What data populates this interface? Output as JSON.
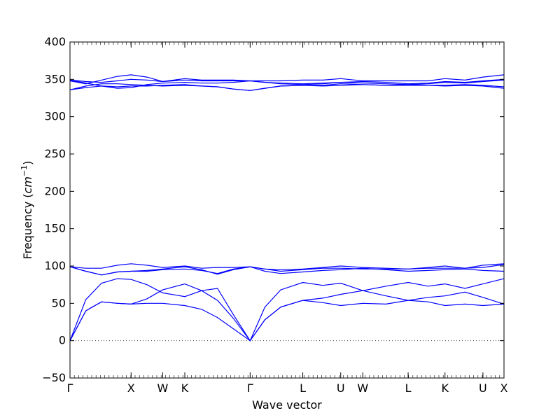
{
  "chart_data": {
    "type": "line",
    "title": "",
    "xlabel": "Wave vector",
    "ylabel": "Frequency",
    "ylabel_unit": "cm",
    "ylabel_unit_power": "−1",
    "ylim": [
      -50,
      400
    ],
    "yticks": [
      -50,
      0,
      50,
      100,
      150,
      200,
      250,
      300,
      350,
      400
    ],
    "ytick_labels": [
      "−50",
      "0",
      "50",
      "100",
      "150",
      "200",
      "250",
      "300",
      "350",
      "400"
    ],
    "xlim": [
      0,
      4.12
    ],
    "xticks": [
      {
        "label": "Γ",
        "x": 0.0
      },
      {
        "label": "X",
        "x": 0.58
      },
      {
        "label": "W",
        "x": 0.88
      },
      {
        "label": "K",
        "x": 1.09
      },
      {
        "label": "Γ",
        "x": 1.71
      },
      {
        "label": "L",
        "x": 2.21
      },
      {
        "label": "U",
        "x": 2.57
      },
      {
        "label": "W",
        "x": 2.78
      },
      {
        "label": "L",
        "x": 3.21
      },
      {
        "label": "K",
        "x": 3.56
      },
      {
        "label": "U",
        "x": 3.92
      },
      {
        "label": "X",
        "x": 4.12
      }
    ],
    "zero_line": {
      "y": 0,
      "style": "dotted"
    },
    "line_color": "#0000ff",
    "series": [
      {
        "x": [
          0.0,
          0.15,
          0.3,
          0.45,
          0.58,
          0.73,
          0.88,
          1.09,
          1.25,
          1.4,
          1.55,
          1.71,
          1.85,
          2.0,
          2.21,
          2.4,
          2.57,
          2.78,
          3.0,
          3.21,
          3.4,
          3.56,
          3.75,
          3.92,
          4.12
        ],
        "y": [
          0,
          40,
          52,
          50,
          49,
          50,
          50,
          47,
          42,
          31,
          16,
          0,
          28,
          45,
          54,
          51,
          47,
          50,
          49,
          54,
          52,
          47,
          49,
          47,
          49
        ]
      },
      {
        "x": [
          0.0,
          0.15,
          0.3,
          0.45,
          0.58,
          0.73,
          0.88,
          1.09,
          1.25,
          1.4,
          1.55,
          1.71,
          1.85,
          2.0,
          2.21,
          2.4,
          2.57,
          2.78,
          3.0,
          3.21,
          3.4,
          3.56,
          3.75,
          3.92,
          4.12
        ],
        "y": [
          0,
          40,
          52,
          50,
          49,
          56,
          68,
          76,
          67,
          54,
          30,
          0,
          28,
          45,
          54,
          57,
          62,
          67,
          60,
          54,
          58,
          60,
          65,
          58,
          49
        ]
      },
      {
        "x": [
          0.0,
          0.15,
          0.3,
          0.45,
          0.58,
          0.73,
          0.88,
          1.09,
          1.25,
          1.4,
          1.55,
          1.71,
          1.85,
          2.0,
          2.21,
          2.4,
          2.57,
          2.78,
          3.0,
          3.21,
          3.4,
          3.56,
          3.75,
          3.92,
          4.12
        ],
        "y": [
          0,
          55,
          77,
          83,
          82,
          75,
          64,
          59,
          67,
          70,
          35,
          0,
          45,
          68,
          78,
          74,
          77,
          67,
          73,
          78,
          73,
          76,
          70,
          76,
          83
        ]
      },
      {
        "x": [
          0.0,
          0.15,
          0.3,
          0.45,
          0.58,
          0.73,
          0.88,
          1.09,
          1.25,
          1.4,
          1.55,
          1.71,
          1.85,
          2.0,
          2.21,
          2.4,
          2.57,
          2.78,
          3.0,
          3.21,
          3.4,
          3.56,
          3.75,
          3.92,
          4.12
        ],
        "y": [
          99,
          93,
          88,
          92,
          93,
          93,
          95,
          96,
          94,
          90,
          96,
          99,
          93,
          90,
          92,
          94,
          95,
          97,
          95,
          93,
          94,
          95,
          96,
          94,
          93
        ]
      },
      {
        "x": [
          0.0,
          0.15,
          0.3,
          0.45,
          0.58,
          0.73,
          0.88,
          1.09,
          1.25,
          1.4,
          1.55,
          1.71,
          1.85,
          2.0,
          2.21,
          2.4,
          2.57,
          2.78,
          3.0,
          3.21,
          3.4,
          3.56,
          3.75,
          3.92,
          4.12
        ],
        "y": [
          99,
          93,
          88,
          92,
          93,
          94,
          96,
          99,
          95,
          89,
          95,
          99,
          96,
          93,
          95,
          97,
          97,
          96,
          96,
          96,
          97,
          97,
          97,
          98,
          102
        ]
      },
      {
        "x": [
          0.0,
          0.15,
          0.3,
          0.45,
          0.58,
          0.73,
          0.88,
          1.09,
          1.25,
          1.4,
          1.55,
          1.71,
          1.85,
          2.0,
          2.21,
          2.4,
          2.57,
          2.78,
          3.0,
          3.21,
          3.4,
          3.56,
          3.75,
          3.92,
          4.12
        ],
        "y": [
          99,
          97,
          97,
          101,
          103,
          101,
          98,
          100,
          97,
          98,
          98,
          99,
          96,
          95,
          96,
          98,
          100,
          98,
          97,
          96,
          98,
          100,
          97,
          101,
          103
        ]
      },
      {
        "x": [
          0.0,
          0.15,
          0.3,
          0.45,
          0.58,
          0.73,
          0.88,
          1.09,
          1.25,
          1.4,
          1.55,
          1.71,
          1.85,
          2.0,
          2.21,
          2.4,
          2.57,
          2.78,
          3.0,
          3.21,
          3.4,
          3.56,
          3.75,
          3.92,
          4.12
        ],
        "y": [
          336,
          339,
          341,
          340,
          341,
          341,
          342,
          343,
          341,
          340,
          337,
          335,
          338,
          341,
          342,
          341,
          342,
          343,
          342,
          342,
          342,
          341,
          342,
          341,
          338
        ]
      },
      {
        "x": [
          0.0,
          0.15,
          0.3,
          0.45,
          0.58,
          0.73,
          0.88,
          1.09,
          1.25,
          1.4,
          1.55,
          1.71,
          1.85,
          2.0,
          2.21,
          2.4,
          2.57,
          2.78,
          3.0,
          3.21,
          3.4,
          3.56,
          3.75,
          3.92,
          4.12
        ],
        "y": [
          336,
          341,
          344,
          344,
          343,
          342,
          341,
          342,
          341,
          340,
          337,
          335,
          338,
          341,
          342,
          342,
          344,
          343,
          342,
          343,
          342,
          342,
          343,
          342,
          340
        ]
      },
      {
        "x": [
          0.0,
          0.15,
          0.3,
          0.45,
          0.58,
          0.73,
          0.88,
          1.09,
          1.25,
          1.4,
          1.55,
          1.71,
          1.85,
          2.0,
          2.21,
          2.4,
          2.57,
          2.78,
          3.0,
          3.21,
          3.4,
          3.56,
          3.75,
          3.92,
          4.12
        ],
        "y": [
          349,
          345,
          341,
          338,
          339,
          343,
          345,
          346,
          345,
          345,
          346,
          348,
          346,
          344,
          343,
          344,
          346,
          345,
          344,
          343,
          344,
          346,
          345,
          347,
          349
        ]
      },
      {
        "x": [
          0.0,
          0.15,
          0.3,
          0.45,
          0.58,
          0.73,
          0.88,
          1.09,
          1.25,
          1.4,
          1.55,
          1.71,
          1.85,
          2.0,
          2.21,
          2.4,
          2.57,
          2.78,
          3.0,
          3.21,
          3.4,
          3.56,
          3.75,
          3.92,
          4.12
        ],
        "y": [
          349,
          347,
          346,
          348,
          350,
          349,
          347,
          349,
          348,
          348,
          348,
          348,
          346,
          345,
          344,
          345,
          346,
          347,
          346,
          344,
          345,
          347,
          346,
          348,
          350
        ]
      },
      {
        "x": [
          0.0,
          0.15,
          0.3,
          0.45,
          0.58,
          0.73,
          0.88,
          1.09,
          1.25,
          1.4,
          1.55,
          1.71,
          1.85,
          2.0,
          2.21,
          2.4,
          2.57,
          2.78,
          3.0,
          3.21,
          3.4,
          3.56,
          3.75,
          3.92,
          4.12
        ],
        "y": [
          348,
          344,
          349,
          354,
          356,
          353,
          347,
          351,
          349,
          349,
          349,
          348,
          348,
          348,
          349,
          349,
          351,
          348,
          348,
          348,
          348,
          351,
          349,
          353,
          356
        ]
      }
    ]
  }
}
